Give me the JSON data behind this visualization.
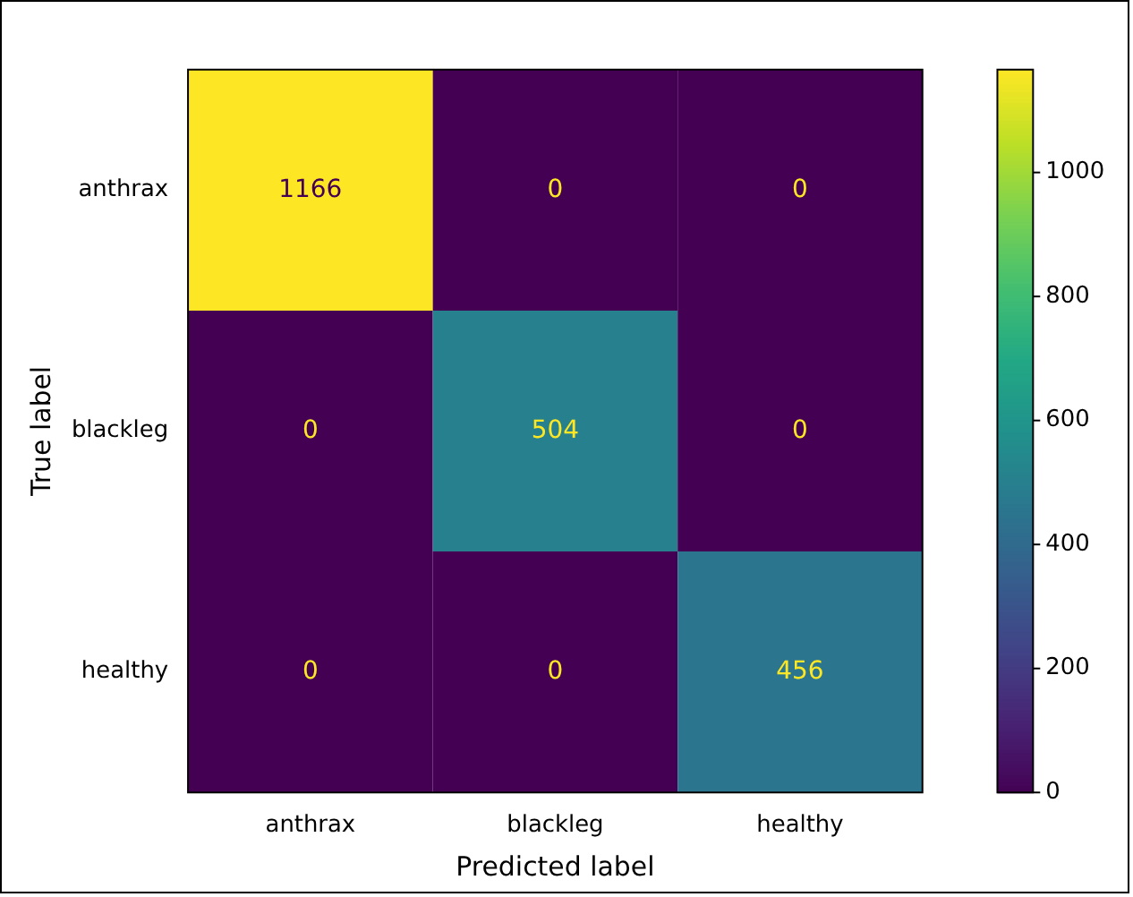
{
  "chart_data": {
    "type": "heatmap",
    "xlabel": "Predicted label",
    "ylabel": "True label",
    "categories": [
      "anthrax",
      "blackleg",
      "healthy"
    ],
    "y_categories": [
      "anthrax",
      "blackleg",
      "healthy"
    ],
    "cells": [
      [
        1166,
        0,
        0
      ],
      [
        0,
        504,
        0
      ],
      [
        0,
        0,
        456
      ]
    ],
    "clim": [
      0,
      1166
    ],
    "cticks": [
      0,
      200,
      400,
      600,
      800,
      1000
    ],
    "data_labels": true
  }
}
